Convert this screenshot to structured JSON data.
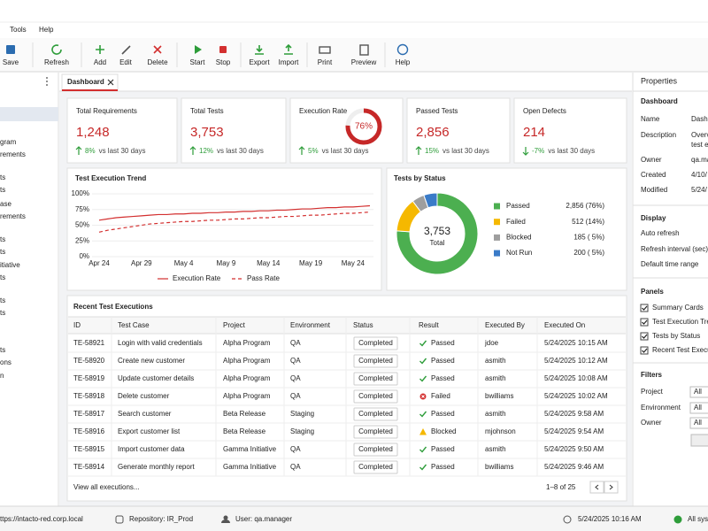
{
  "menu": [
    "Tools",
    "Help"
  ],
  "toolbar": [
    "Save",
    "Refresh",
    "Add",
    "Edit",
    "Delete",
    "Start",
    "Stop",
    "Export",
    "Import",
    "Print",
    "Preview",
    "Help"
  ],
  "sidebar": [
    "gram",
    "rements",
    "ts",
    "ts",
    "ase",
    "rements",
    "ts",
    "ts",
    "itiative",
    "ts",
    "ts",
    "ts",
    "ts",
    "ons",
    "n"
  ],
  "tab": "Dashboard",
  "cards": [
    {
      "title": "Total Requirements",
      "value": "1,248",
      "delta": "8%",
      "note": "vs last 30 days"
    },
    {
      "title": "Total Tests",
      "value": "3,753",
      "delta": "12%",
      "note": "vs last 30 days"
    },
    {
      "title": "Execution Rate",
      "gauge": 76,
      "gauge_label": "76%",
      "delta": "5%",
      "note": "vs last 30 days"
    },
    {
      "title": "Passed Tests",
      "value": "2,856",
      "delta": "15%",
      "note": "vs last 30 days"
    },
    {
      "title": "Open Defects",
      "value": "214",
      "delta": "-7%",
      "note": "vs last 30 days"
    }
  ],
  "trend_chart": {
    "type": "line",
    "title": "Test Execution Trend",
    "categories": [
      "Apr 24",
      null,
      null,
      null,
      null,
      "Apr 29",
      null,
      null,
      null,
      null,
      "May 4",
      null,
      null,
      null,
      null,
      "May 9",
      null,
      null,
      null,
      null,
      "May 14",
      null,
      null,
      null,
      null,
      "May 19",
      null,
      null,
      null,
      null,
      "May 24",
      null,
      null
    ],
    "series": [
      {
        "name": "Execution Rate",
        "color": "#d32f2f",
        "line_style": "solid",
        "values": [
          58,
          60,
          62,
          63,
          64,
          65,
          66,
          67,
          67,
          68,
          68,
          69,
          69,
          70,
          70,
          71,
          71,
          72,
          72,
          73,
          73,
          74,
          74,
          75,
          76,
          76,
          77,
          78,
          78,
          79,
          79,
          80,
          81
        ]
      },
      {
        "name": "Pass Rate",
        "color": "#d32f2f",
        "line_style": "dashed",
        "values": [
          39,
          42,
          44,
          46,
          48,
          50,
          52,
          53,
          54,
          55,
          56,
          56,
          57,
          58,
          58,
          59,
          60,
          60,
          61,
          62,
          62,
          63,
          64,
          64,
          65,
          66,
          66,
          67,
          68,
          69,
          69,
          70,
          71
        ]
      }
    ],
    "ylim": [
      0,
      100
    ],
    "yticks": [
      {
        "value": 0,
        "label": "0%"
      },
      {
        "value": 25,
        "label": "25%"
      },
      {
        "value": 50,
        "label": "50%"
      },
      {
        "value": 75,
        "label": "75%"
      },
      {
        "value": 100,
        "label": "100%"
      }
    ],
    "grid": true
  },
  "status_chart": {
    "type": "donut",
    "title": "Tests by Status",
    "center_value": "3,753",
    "center_label": "Total",
    "categories": [
      "Passed",
      "Failed",
      "Blocked",
      "Not Run"
    ],
    "values": [
      2856,
      512,
      185,
      200
    ],
    "value_labels": [
      "2,856 (76%)",
      "512 (14%)",
      "185 ( 5%)",
      "200 ( 5%)"
    ],
    "colors": [
      "#4caf50",
      "#f5b800",
      "#9e9e9e",
      "#3a7bc8"
    ]
  },
  "table": {
    "title": "Recent Test Executions",
    "columns": [
      "ID",
      "Test Case",
      "Project",
      "Environment",
      "Status",
      "Result",
      "Executed By",
      "Executed On"
    ],
    "rows": [
      [
        "TE-58921",
        "Login with valid credentials",
        "Alpha Program",
        "QA",
        "Completed",
        "Passed",
        "jdoe",
        "5/24/2025 10:15 AM"
      ],
      [
        "TE-58920",
        "Create new customer",
        "Alpha Program",
        "QA",
        "Completed",
        "Passed",
        "asmith",
        "5/24/2025 10:12 AM"
      ],
      [
        "TE-58919",
        "Update customer details",
        "Alpha Program",
        "QA",
        "Completed",
        "Passed",
        "asmith",
        "5/24/2025 10:08 AM"
      ],
      [
        "TE-58918",
        "Delete customer",
        "Alpha Program",
        "QA",
        "Completed",
        "Failed",
        "bwilliams",
        "5/24/2025 10:02 AM"
      ],
      [
        "TE-58917",
        "Search customer",
        "Beta Release",
        "Staging",
        "Completed",
        "Passed",
        "asmith",
        "5/24/2025 9:58 AM"
      ],
      [
        "TE-58916",
        "Export customer list",
        "Beta Release",
        "Staging",
        "Completed",
        "Blocked",
        "mjohnson",
        "5/24/2025 9:54 AM"
      ],
      [
        "TE-58915",
        "Import customer data",
        "Gamma Initiative",
        "QA",
        "Completed",
        "Passed",
        "asmith",
        "5/24/2025 9:50 AM"
      ],
      [
        "TE-58914",
        "Generate monthly report",
        "Gamma Initiative",
        "QA",
        "Completed",
        "Passed",
        "bwilliams",
        "5/24/2025 9:46 AM"
      ]
    ],
    "link": "View all executions...",
    "pagination": "1–8 of 25"
  },
  "properties": {
    "title": "Properties",
    "dashboard": {
      "heading": "Dashboard",
      "fields": [
        {
          "label": "Name",
          "lines": [
            "Dashb"
          ]
        },
        {
          "label": "Description",
          "lines": [
            "Overv",
            "test e"
          ]
        },
        {
          "label": "Owner",
          "lines": [
            "qa.ma"
          ]
        },
        {
          "label": "Created",
          "lines": [
            "4/10/"
          ]
        },
        {
          "label": "Modified",
          "lines": [
            "5/24/"
          ]
        }
      ]
    },
    "display": {
      "heading": "Display",
      "items": [
        "Auto refresh",
        "Refresh interval (sec)",
        "Default time range"
      ]
    },
    "panels": {
      "heading": "Panels",
      "items": [
        "Summary Cards",
        "Test Execution Tren",
        "Tests by Status",
        "Recent Test Executi"
      ]
    },
    "filters": {
      "heading": "Filters",
      "items": [
        {
          "label": "Project",
          "value": "All"
        },
        {
          "label": "Environment",
          "value": "All"
        },
        {
          "label": "Owner",
          "value": "All"
        }
      ]
    }
  },
  "statusbar": {
    "url": "ttps://intacto-red.corp.local",
    "repository": "Repository: IR_Prod",
    "user": "User: qa.manager",
    "datetime": "5/24/2025 10:16 AM",
    "status": "All syst"
  }
}
